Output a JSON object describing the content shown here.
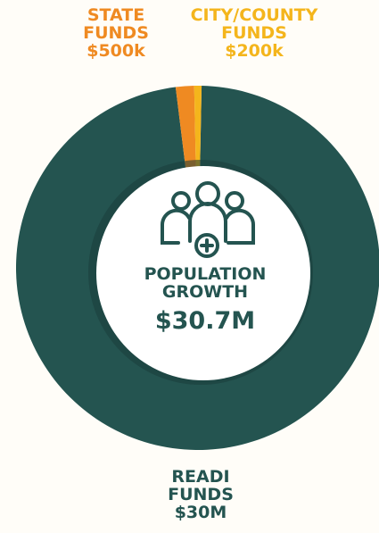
{
  "chart_data": {
    "type": "donut",
    "categories": [
      "READI FUNDS",
      "STATE FUNDS",
      "CITY/COUNTY FUNDS"
    ],
    "values": [
      30000000,
      500000,
      200000
    ],
    "value_labels": [
      "$30M",
      "$500k",
      "$200k"
    ],
    "colors": [
      "#245450",
      "#ef8a22",
      "#f4b51c"
    ],
    "center_title": "POPULATION GROWTH",
    "center_value": "$30.7M"
  }
}
